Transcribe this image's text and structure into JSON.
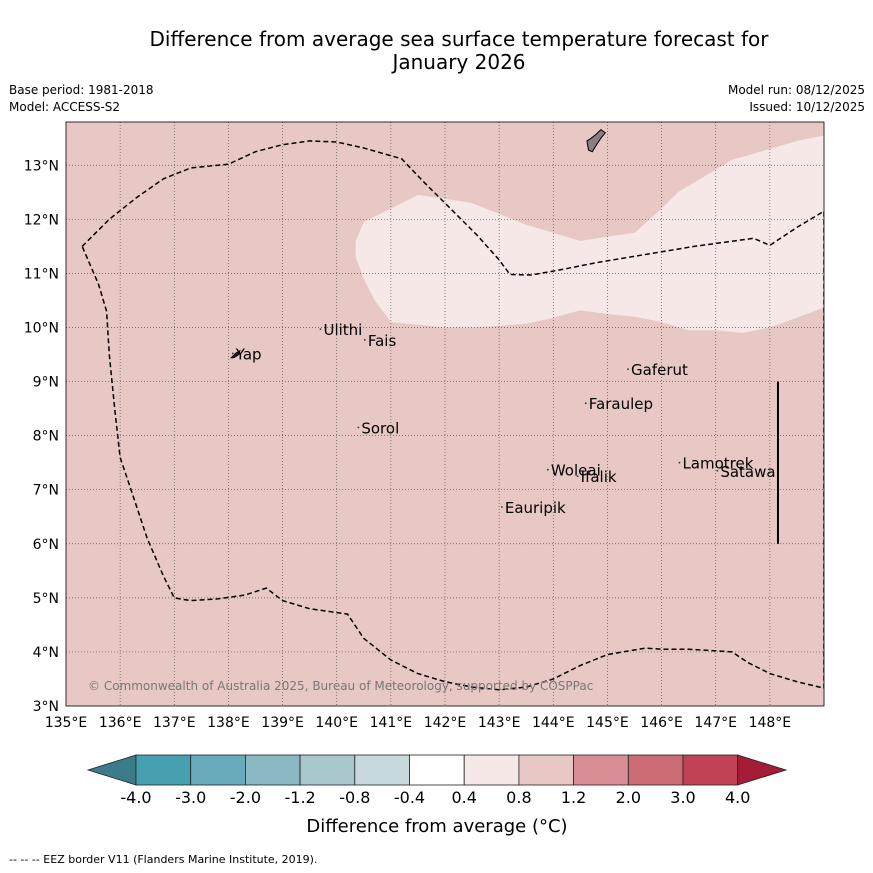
{
  "title": {
    "line1": "Difference from average sea surface temperature forecast for",
    "line2": "January 2026"
  },
  "meta": {
    "base_period": "Base period: 1981-2018",
    "model": "Model: ACCESS-S2",
    "model_run": "Model run: 08/12/2025",
    "issued": "Issued: 10/12/2025"
  },
  "map": {
    "lon_range": [
      135,
      149
    ],
    "lat_range": [
      3,
      13.8
    ],
    "lon_ticks": [
      135,
      136,
      137,
      138,
      139,
      140,
      141,
      142,
      143,
      144,
      145,
      146,
      147,
      148
    ],
    "lat_ticks": [
      3,
      4,
      5,
      6,
      7,
      8,
      9,
      10,
      11,
      12,
      13
    ],
    "lon_tick_labels": [
      "135°E",
      "136°E",
      "137°E",
      "138°E",
      "139°E",
      "140°E",
      "141°E",
      "142°E",
      "143°E",
      "144°E",
      "145°E",
      "146°E",
      "147°E",
      "148°E"
    ],
    "lat_tick_labels": [
      "3°N",
      "4°N",
      "5°N",
      "6°N",
      "7°N",
      "8°N",
      "9°N",
      "10°N",
      "11°N",
      "12°N",
      "13°N"
    ],
    "background_fill": "#e8c8c4",
    "warm_band_fill": "#f5e8e6",
    "warm_band_polygon": [
      [
        140.35,
        11.6
      ],
      [
        140.5,
        11.95
      ],
      [
        141,
        12.2
      ],
      [
        141.5,
        12.45
      ],
      [
        142,
        12.38
      ],
      [
        142.5,
        12.3
      ],
      [
        143,
        12.1
      ],
      [
        143.5,
        11.9
      ],
      [
        144,
        11.75
      ],
      [
        144.5,
        11.6
      ],
      [
        145,
        11.68
      ],
      [
        145.5,
        11.75
      ],
      [
        146,
        12.2
      ],
      [
        146.3,
        12.5
      ],
      [
        146.8,
        12.8
      ],
      [
        147.3,
        13.1
      ],
      [
        148,
        13.3
      ],
      [
        148.5,
        13.45
      ],
      [
        149,
        13.55
      ],
      [
        149,
        10.37
      ],
      [
        148.5,
        10.18
      ],
      [
        148,
        10.0
      ],
      [
        147.5,
        9.9
      ],
      [
        147,
        9.95
      ],
      [
        146.5,
        9.95
      ],
      [
        146,
        10.1
      ],
      [
        145.5,
        10.2
      ],
      [
        145,
        10.25
      ],
      [
        144.5,
        10.32
      ],
      [
        144,
        10.18
      ],
      [
        143.5,
        10.07
      ],
      [
        143,
        10.03
      ],
      [
        142.5,
        10.0
      ],
      [
        142,
        10.0
      ],
      [
        141.5,
        10.05
      ],
      [
        141,
        10.1
      ],
      [
        140.7,
        10.5
      ],
      [
        140.5,
        10.9
      ],
      [
        140.35,
        11.3
      ]
    ],
    "eez_line": [
      [
        135.3,
        11.5
      ],
      [
        135.8,
        12.0
      ],
      [
        136.3,
        12.4
      ],
      [
        136.8,
        12.75
      ],
      [
        137.3,
        12.95
      ],
      [
        138,
        13.02
      ],
      [
        138.5,
        13.25
      ],
      [
        139,
        13.38
      ],
      [
        139.5,
        13.45
      ],
      [
        140,
        13.43
      ],
      [
        140.5,
        13.32
      ],
      [
        141.2,
        13.12
      ],
      [
        141.6,
        12.7
      ],
      [
        142.1,
        12.2
      ],
      [
        142.6,
        11.7
      ],
      [
        143,
        11.25
      ],
      [
        143.2,
        10.98
      ],
      [
        143.6,
        10.97
      ],
      [
        144.2,
        11.08
      ],
      [
        144.8,
        11.2
      ],
      [
        145.4,
        11.3
      ],
      [
        146,
        11.4
      ],
      [
        146.6,
        11.5
      ],
      [
        147.2,
        11.58
      ],
      [
        147.7,
        11.65
      ],
      [
        148,
        11.52
      ],
      [
        148.5,
        11.85
      ],
      [
        149,
        12.15
      ],
      [
        149,
        3.33
      ],
      [
        148.5,
        3.45
      ],
      [
        148,
        3.6
      ],
      [
        147.6,
        3.8
      ],
      [
        147.3,
        4.0
      ],
      [
        146.5,
        4.05
      ],
      [
        146,
        4.05
      ],
      [
        145.7,
        4.07
      ],
      [
        145,
        3.95
      ],
      [
        144.5,
        3.75
      ],
      [
        144,
        3.5
      ],
      [
        143.5,
        3.35
      ],
      [
        143,
        3.3
      ],
      [
        142.5,
        3.35
      ],
      [
        142,
        3.45
      ],
      [
        141.5,
        3.6
      ],
      [
        141,
        3.85
      ],
      [
        140.5,
        4.25
      ],
      [
        140.2,
        4.7
      ],
      [
        139.5,
        4.8
      ],
      [
        139.0,
        4.95
      ],
      [
        138.7,
        5.18
      ],
      [
        138.3,
        5.05
      ],
      [
        137.8,
        4.98
      ],
      [
        137.3,
        4.95
      ],
      [
        137,
        5.0
      ],
      [
        136.8,
        5.4
      ],
      [
        136.5,
        6.1
      ],
      [
        136.2,
        7.0
      ],
      [
        136.0,
        7.6
      ],
      [
        135.9,
        8.5
      ],
      [
        135.8,
        9.5
      ],
      [
        135.75,
        10.3
      ],
      [
        135.6,
        10.8
      ],
      [
        135.3,
        11.5
      ]
    ],
    "eez_vertical_line": [
      [
        148.15,
        9.0
      ],
      [
        148.15,
        6.0
      ]
    ],
    "guam_outline": [
      [
        144.62,
        13.45
      ],
      [
        144.7,
        13.5
      ],
      [
        144.8,
        13.58
      ],
      [
        144.88,
        13.66
      ],
      [
        144.96,
        13.6
      ],
      [
        144.88,
        13.5
      ],
      [
        144.8,
        13.38
      ],
      [
        144.72,
        13.25
      ],
      [
        144.65,
        13.28
      ],
      [
        144.62,
        13.45
      ]
    ],
    "yap_outline": [
      [
        138.05,
        9.44
      ],
      [
        138.13,
        9.52
      ],
      [
        138.21,
        9.57
      ],
      [
        138.19,
        9.5
      ],
      [
        138.1,
        9.44
      ]
    ],
    "islands": [
      {
        "name": "Yap",
        "lon": 138.08,
        "lat": 9.52
      },
      {
        "name": "Ulithi",
        "lon": 139.7,
        "lat": 9.97
      },
      {
        "name": "Fais",
        "lon": 140.52,
        "lat": 9.77
      },
      {
        "name": "Gaferut",
        "lon": 145.38,
        "lat": 9.23
      },
      {
        "name": "Faraulep",
        "lon": 144.6,
        "lat": 8.6
      },
      {
        "name": "Sorol",
        "lon": 140.4,
        "lat": 8.15
      },
      {
        "name": "Woleai",
        "lon": 143.9,
        "lat": 7.37
      },
      {
        "name": "Ifalik",
        "lon": 144.45,
        "lat": 7.25
      },
      {
        "name": "Lamotrek",
        "lon": 146.33,
        "lat": 7.5
      },
      {
        "name": "Satawal",
        "lon": 147.03,
        "lat": 7.35
      },
      {
        "name": "Eauripik",
        "lon": 143.05,
        "lat": 6.68
      }
    ],
    "copyright": "© Commonwealth of Australia 2025, Bureau of Meteorology, supported by COSPPac"
  },
  "colorbar": {
    "label": "Difference from average (°C)",
    "low_extend_color": "#3b7b8a",
    "high_extend_color": "#a51c36",
    "colors": [
      "#46a0b0",
      "#69abba",
      "#8ab8c3",
      "#a8c8ce",
      "#c8d9dd",
      "#ffffff",
      "#f5e8e6",
      "#e8c8c4",
      "#d98e95",
      "#cd6b74",
      "#c04254"
    ],
    "tick_labels": [
      "-4.0",
      "-3.0",
      "-2.0",
      "-1.2",
      "-0.8",
      "-0.4",
      "0.4",
      "0.8",
      "1.2",
      "2.0",
      "3.0",
      "4.0"
    ]
  },
  "footer": "--  --  -- EEZ border V11 (Flanders Marine Institute, 2019)."
}
